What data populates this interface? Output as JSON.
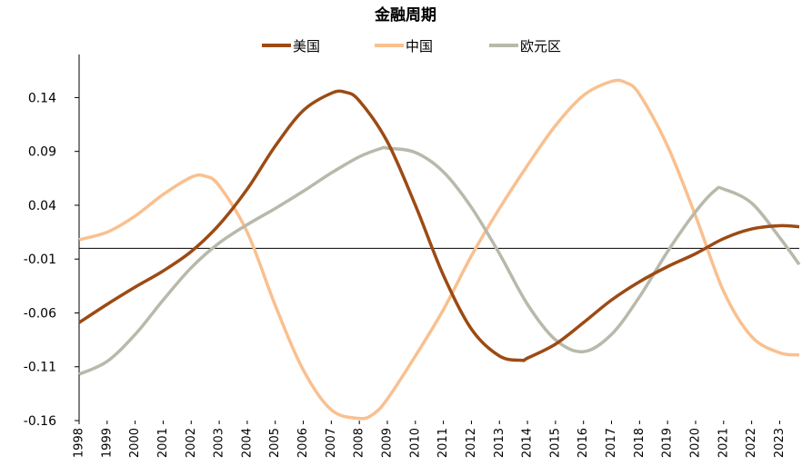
{
  "chart_data": {
    "type": "line",
    "title": "金融周期",
    "xlabel": "",
    "ylabel": "",
    "xlim": [
      1998,
      2023.7
    ],
    "ylim": [
      -0.16,
      0.18
    ],
    "y_ticks": [
      0.14,
      0.09,
      0.04,
      -0.01,
      -0.06,
      -0.11,
      -0.16
    ],
    "y_tick_labels": [
      "0.14",
      "0.09",
      "0.04",
      "-0.01",
      "-0.06",
      "-0.11",
      "-0.16"
    ],
    "x_tick_labels": [
      "1998",
      "1999",
      "2000",
      "2001",
      "2002",
      "2003",
      "2004",
      "2005",
      "2006",
      "2007",
      "2008",
      "2009",
      "2010",
      "2011",
      "2012",
      "2013",
      "2014",
      "2015",
      "2016",
      "2017",
      "2018",
      "2019",
      "2020",
      "2021",
      "2022",
      "2023"
    ],
    "grid": false,
    "legend_position": "top",
    "series": [
      {
        "name": "美国",
        "color": "#9c4b14",
        "x": [
          1998,
          1999,
          2000,
          2001,
          2002,
          2003,
          2004,
          2005,
          2006,
          2007,
          2007.5,
          2008,
          2009,
          2010,
          2011,
          2012,
          2013,
          2013.8,
          2014,
          2015,
          2016,
          2017,
          2018,
          2019,
          2020,
          2021,
          2022,
          2023,
          2023.7
        ],
        "y": [
          -0.069,
          -0.052,
          -0.036,
          -0.021,
          -0.003,
          0.022,
          0.055,
          0.095,
          0.128,
          0.144,
          0.145,
          0.137,
          0.099,
          0.04,
          -0.025,
          -0.075,
          -0.1,
          -0.104,
          -0.102,
          -0.089,
          -0.069,
          -0.048,
          -0.031,
          -0.017,
          -0.005,
          0.009,
          0.018,
          0.021,
          0.02
        ]
      },
      {
        "name": "中国",
        "color": "#f9c08f",
        "x": [
          1998,
          1999,
          2000,
          2001,
          2002,
          2002.5,
          2003,
          2004,
          2005,
          2006,
          2007,
          2008,
          2008.5,
          2009,
          2010,
          2011,
          2012,
          2013,
          2014,
          2015,
          2016,
          2017,
          2017.5,
          2018,
          2019,
          2020,
          2021,
          2022,
          2023,
          2023.7
        ],
        "y": [
          0.008,
          0.015,
          0.03,
          0.05,
          0.066,
          0.067,
          0.058,
          0.015,
          -0.053,
          -0.113,
          -0.15,
          -0.158,
          -0.154,
          -0.14,
          -0.1,
          -0.057,
          -0.007,
          0.037,
          0.077,
          0.114,
          0.142,
          0.155,
          0.154,
          0.143,
          0.095,
          0.03,
          -0.04,
          -0.082,
          -0.097,
          -0.099
        ]
      },
      {
        "name": "欧元区",
        "color": "#b9b9ab",
        "x": [
          1998,
          1999,
          2000,
          2001,
          2002,
          2003,
          2004,
          2005,
          2006,
          2007,
          2008,
          2008.8,
          2009,
          2010,
          2011,
          2012,
          2013,
          2014,
          2015,
          2016,
          2017,
          2018,
          2019,
          2020,
          2020.7,
          2021,
          2022,
          2023,
          2023.7
        ],
        "y": [
          -0.117,
          -0.105,
          -0.08,
          -0.048,
          -0.018,
          0.005,
          0.022,
          0.037,
          0.053,
          0.07,
          0.085,
          0.093,
          0.093,
          0.089,
          0.071,
          0.038,
          -0.005,
          -0.052,
          -0.085,
          -0.096,
          -0.08,
          -0.045,
          -0.003,
          0.034,
          0.054,
          0.055,
          0.042,
          0.01,
          -0.015
        ]
      }
    ]
  }
}
